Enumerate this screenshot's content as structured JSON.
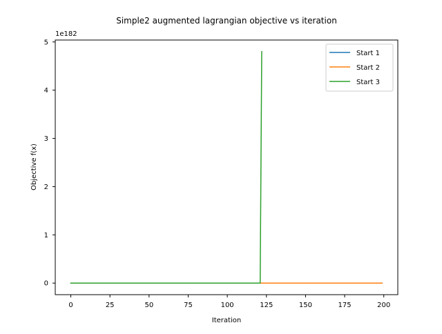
{
  "chart_data": {
    "type": "line",
    "title": "Simple2 augmented lagrangian objective vs iteration",
    "xlabel": "Iteration",
    "ylabel": "Objective f(x)",
    "y_offset_label": "1e182",
    "xlim": [
      -9.95,
      208.95
    ],
    "ylim": [
      -0.24,
      5.04
    ],
    "xticks": [
      0,
      25,
      50,
      75,
      100,
      125,
      150,
      175,
      200
    ],
    "yticks": [
      0,
      1,
      2,
      3,
      4,
      5
    ],
    "grid": false,
    "legend_position": "top-right",
    "series": [
      {
        "name": "Start 1",
        "color": "#1f77b4",
        "points": [
          [
            0,
            0
          ],
          [
            199,
            0
          ]
        ]
      },
      {
        "name": "Start 2",
        "color": "#ff7f0e",
        "points": [
          [
            0,
            0
          ],
          [
            199,
            0
          ]
        ]
      },
      {
        "name": "Start 3",
        "color": "#2ca02c",
        "points": [
          [
            0,
            0
          ],
          [
            121,
            0
          ],
          [
            122,
            4.8
          ]
        ]
      }
    ]
  }
}
